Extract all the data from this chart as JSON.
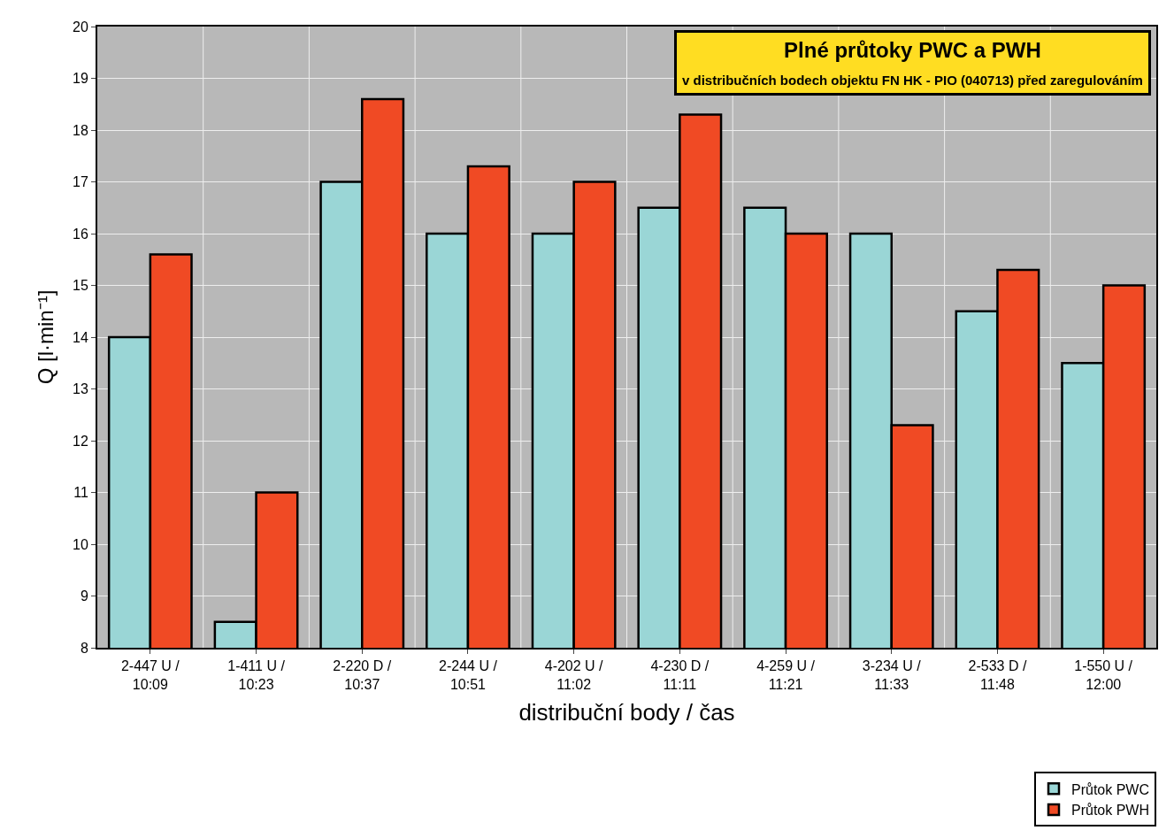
{
  "chart_data": {
    "type": "bar",
    "title": "Plné průtoky PWC a PWH",
    "subtitle": "v distribučních bodech objektu FN HK - PIO (040713) před zaregulováním",
    "xlabel": "distribuční body / čas",
    "ylabel": "Q [l·min⁻¹]",
    "categories": [
      "2-447 U /\n10:09",
      "1-411 U /\n10:23",
      "2-220 D /\n10:37",
      "2-244 U /\n10:51",
      "4-202 U /\n11:02",
      "4-230 D /\n11:11",
      "4-259 U /\n11:21",
      "3-234 U /\n11:33",
      "2-533 D /\n11:48",
      "1-550 U /\n12:00"
    ],
    "series": [
      {
        "name": "Průtok PWC",
        "color": "#9ad6d6",
        "values": [
          14,
          8.5,
          17,
          16,
          16,
          16.5,
          16.5,
          16,
          14.5,
          13.5
        ]
      },
      {
        "name": "Průtok PWH",
        "color": "#f04a24",
        "values": [
          15.6,
          11,
          18.6,
          17.3,
          17,
          18.3,
          16,
          12.3,
          15.3,
          15
        ]
      }
    ],
    "ylim": [
      8,
      20
    ],
    "yticks": [
      8,
      9,
      10,
      11,
      12,
      13,
      14,
      15,
      16,
      17,
      18,
      19,
      20
    ],
    "grid": true,
    "legend": "bottom right"
  }
}
